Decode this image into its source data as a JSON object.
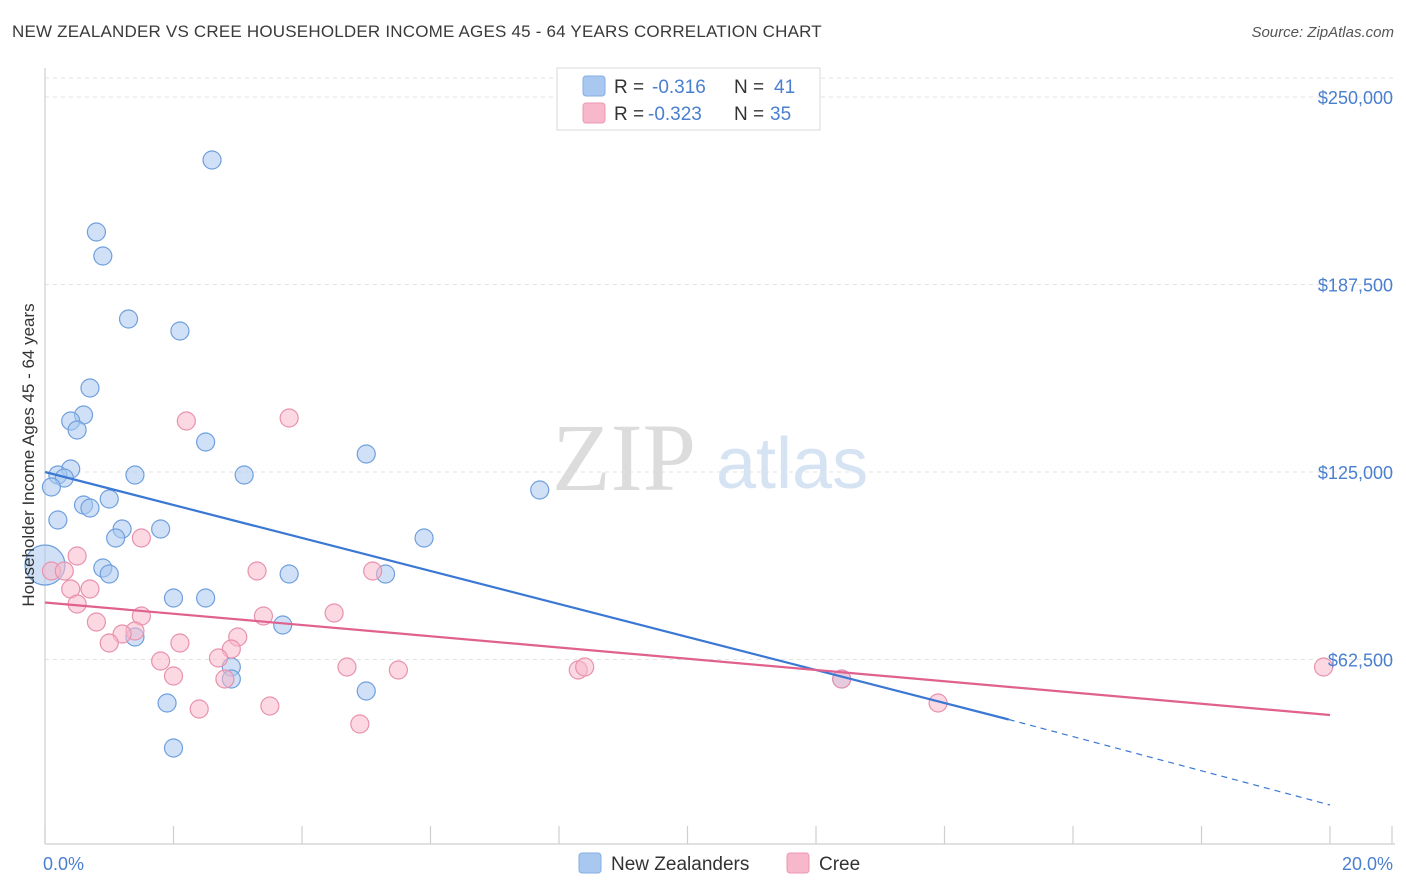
{
  "title": "NEW ZEALANDER VS CREE HOUSEHOLDER INCOME AGES 45 - 64 YEARS CORRELATION CHART",
  "source": "Source: ZipAtlas.com",
  "watermark": {
    "zip": "ZIP",
    "atlas": "atlas"
  },
  "legend_top": [
    {
      "r_label": "R =",
      "r_value": "-0.316",
      "n_label": "N =",
      "n_value": "41",
      "color": "#a9c8f0"
    },
    {
      "r_label": "R =",
      "r_value": "-0.323",
      "n_label": "N =",
      "n_value": "35",
      "color": "#f7b8cb"
    }
  ],
  "legend_bottom": [
    {
      "label": "New Zealanders",
      "color": "#a9c8f0"
    },
    {
      "label": "Cree",
      "color": "#f7b8cb"
    }
  ],
  "colors": {
    "blue": "#3a78d4",
    "blue_fill": "#a9c8f0",
    "pink": "#e0608e",
    "pink_fill": "#f7b8cb",
    "grid": "#e3e3e3"
  },
  "chart_data": {
    "type": "scatter",
    "ylabel": "Householder Income Ages 45 - 64 years",
    "xlabel": "",
    "xlim": [
      0,
      20
    ],
    "ylim": [
      0,
      250000
    ],
    "x_tick_labels": [
      {
        "x": 0,
        "label": "0.0%"
      },
      {
        "x": 20,
        "label": "20.0%"
      }
    ],
    "y_ticks": [
      {
        "y": 250000,
        "label": "$250,000"
      },
      {
        "y": 187500,
        "label": "$187,500"
      },
      {
        "y": 125000,
        "label": "$125,000"
      },
      {
        "y": 62500,
        "label": "$62,500"
      }
    ],
    "grid": true,
    "series": [
      {
        "name": "New Zealanders",
        "points": [
          [
            2.6,
            229000
          ],
          [
            0.8,
            205000
          ],
          [
            0.9,
            197000
          ],
          [
            1.3,
            176000
          ],
          [
            2.1,
            172000
          ],
          [
            0.7,
            153000
          ],
          [
            0.6,
            144000
          ],
          [
            0.4,
            142000
          ],
          [
            0.5,
            139000
          ],
          [
            2.5,
            135000
          ],
          [
            5.0,
            131000
          ],
          [
            0.4,
            126000
          ],
          [
            0.2,
            124000
          ],
          [
            0.3,
            123000
          ],
          [
            1.4,
            124000
          ],
          [
            3.1,
            124000
          ],
          [
            0.1,
            120000
          ],
          [
            7.7,
            119000
          ],
          [
            1.0,
            116000
          ],
          [
            0.6,
            114000
          ],
          [
            0.7,
            113000
          ],
          [
            0.2,
            109000
          ],
          [
            1.8,
            106000
          ],
          [
            1.2,
            106000
          ],
          [
            1.1,
            103000
          ],
          [
            5.9,
            103000
          ],
          [
            0.0,
            94000
          ],
          [
            0.9,
            93000
          ],
          [
            1.0,
            91000
          ],
          [
            3.8,
            91000
          ],
          [
            5.3,
            91000
          ],
          [
            2.0,
            83000
          ],
          [
            2.5,
            83000
          ],
          [
            3.7,
            74000
          ],
          [
            1.4,
            70000
          ],
          [
            2.9,
            60000
          ],
          [
            2.9,
            56000
          ],
          [
            5.0,
            52000
          ],
          [
            1.9,
            48000
          ],
          [
            12.4,
            56000
          ],
          [
            2.0,
            33000
          ]
        ]
      },
      {
        "name": "Cree",
        "points": [
          [
            2.2,
            142000
          ],
          [
            3.8,
            143000
          ],
          [
            1.5,
            103000
          ],
          [
            0.1,
            92000
          ],
          [
            0.3,
            92000
          ],
          [
            3.3,
            92000
          ],
          [
            5.1,
            92000
          ],
          [
            0.4,
            86000
          ],
          [
            0.7,
            86000
          ],
          [
            0.5,
            81000
          ],
          [
            1.5,
            77000
          ],
          [
            3.4,
            77000
          ],
          [
            4.5,
            78000
          ],
          [
            0.8,
            75000
          ],
          [
            1.4,
            72000
          ],
          [
            1.2,
            71000
          ],
          [
            1.0,
            68000
          ],
          [
            2.1,
            68000
          ],
          [
            3.0,
            70000
          ],
          [
            2.9,
            66000
          ],
          [
            1.8,
            62000
          ],
          [
            2.7,
            63000
          ],
          [
            4.7,
            60000
          ],
          [
            5.5,
            59000
          ],
          [
            8.3,
            59000
          ],
          [
            8.4,
            60000
          ],
          [
            2.0,
            57000
          ],
          [
            2.8,
            56000
          ],
          [
            2.4,
            46000
          ],
          [
            3.5,
            47000
          ],
          [
            12.4,
            56000
          ],
          [
            19.9,
            60000
          ],
          [
            4.9,
            41000
          ],
          [
            13.9,
            48000
          ],
          [
            0.5,
            97000
          ]
        ]
      }
    ],
    "trend_lines": [
      {
        "name": "New Zealanders",
        "x": [
          0,
          15.0
        ],
        "y": [
          125000,
          42500
        ],
        "dashed_to": [
          20.0,
          14000
        ]
      },
      {
        "name": "Cree",
        "x": [
          0,
          20.0
        ],
        "y": [
          81500,
          44000
        ]
      }
    ]
  }
}
